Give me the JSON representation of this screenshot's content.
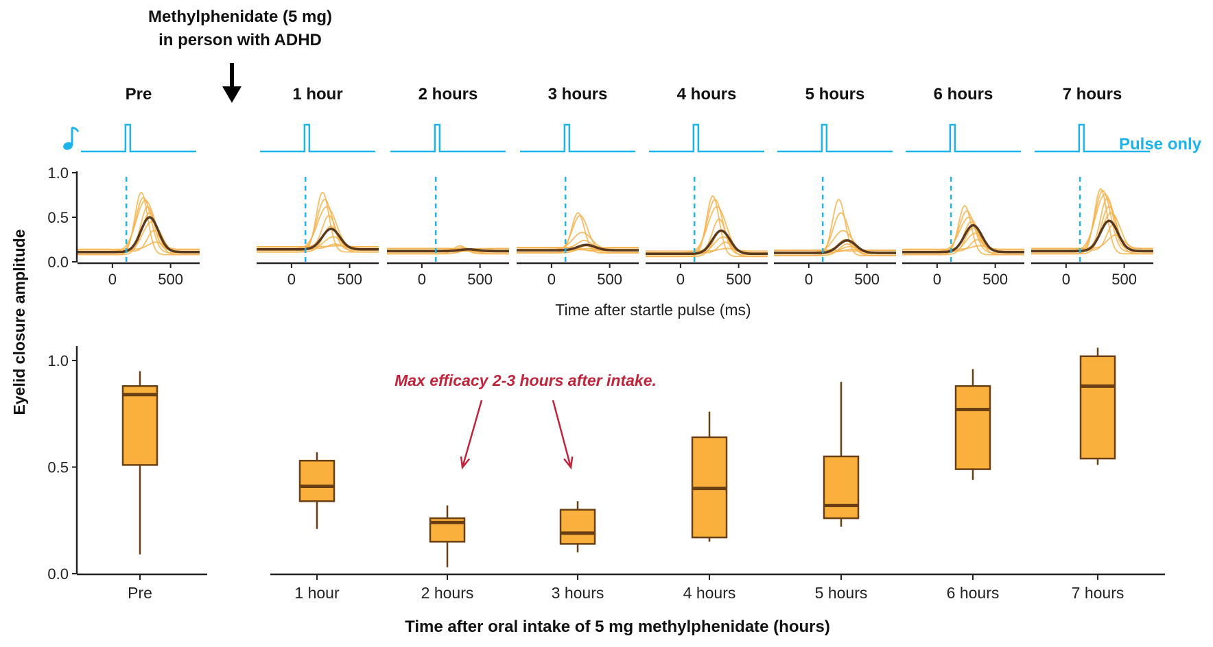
{
  "header": {
    "drug_line1": "Methylphenidate (5 mg)",
    "drug_line2": "in person with ADHD"
  },
  "stimulus_label": "Pulse only",
  "colors": {
    "stimulus": "#1cb4ea",
    "trace_light": "#f7b24a",
    "trace_mean": "#5a3a1e",
    "box_fill": "#f9b03d",
    "box_edge": "#6b3f14",
    "annotation": "#c0233a",
    "axis": "#222222"
  },
  "chart_data": [
    {
      "type": "line",
      "description_role": "trace-panels",
      "panels": [
        "Pre",
        "1 hour",
        "2 hours",
        "3 hours",
        "4 hours",
        "5 hours",
        "6 hours",
        "7 hours"
      ],
      "xlabel": "Time after startle pulse (ms)",
      "ylabel": "Eyelid closure amplitude",
      "xlim": [
        -300,
        750
      ],
      "ylim": [
        0,
        1
      ],
      "xticks": [
        0,
        500
      ],
      "yticks": [
        "0.0",
        "0.5",
        "1.0"
      ],
      "pulse_onset_ms": 120,
      "mean_traces": [
        {
          "name": "Pre",
          "peak_ms": 320,
          "peak": 0.5,
          "baseline": 0.11
        },
        {
          "name": "1 hour",
          "peak_ms": 340,
          "peak": 0.37,
          "baseline": 0.14
        },
        {
          "name": "2 hours",
          "peak_ms": 400,
          "peak": 0.14,
          "baseline": 0.12
        },
        {
          "name": "3 hours",
          "peak_ms": 300,
          "peak": 0.19,
          "baseline": 0.13
        },
        {
          "name": "4 hours",
          "peak_ms": 350,
          "peak": 0.35,
          "baseline": 0.09
        },
        {
          "name": "5 hours",
          "peak_ms": 330,
          "peak": 0.24,
          "baseline": 0.1
        },
        {
          "name": "6 hours",
          "peak_ms": 310,
          "peak": 0.41,
          "baseline": 0.11
        },
        {
          "name": "7 hours",
          "peak_ms": 370,
          "peak": 0.46,
          "baseline": 0.12
        }
      ],
      "individual_peaks": [
        [
          0.78,
          0.72,
          0.69,
          0.62,
          0.55,
          0.45,
          0.35,
          0.22
        ],
        [
          0.78,
          0.7,
          0.62,
          0.52,
          0.4,
          0.28,
          0.2,
          0.18
        ],
        [
          0.18,
          0.16,
          0.15,
          0.14,
          0.13,
          0.12,
          0.12,
          0.11
        ],
        [
          0.55,
          0.52,
          0.33,
          0.24,
          0.18,
          0.15,
          0.13,
          0.12
        ],
        [
          0.74,
          0.7,
          0.62,
          0.48,
          0.35,
          0.28,
          0.22,
          0.15
        ],
        [
          0.7,
          0.55,
          0.35,
          0.25,
          0.2,
          0.17,
          0.14,
          0.12
        ],
        [
          0.63,
          0.57,
          0.5,
          0.45,
          0.38,
          0.32,
          0.25,
          0.18
        ],
        [
          0.82,
          0.8,
          0.76,
          0.71,
          0.62,
          0.55,
          0.42,
          0.3
        ]
      ]
    },
    {
      "type": "box",
      "categories": [
        "Pre",
        "1 hour",
        "2 hours",
        "3 hours",
        "4 hours",
        "5 hours",
        "6 hours",
        "7 hours"
      ],
      "xlabel": "Time after oral intake of 5 mg methylphenidate (hours)",
      "ylabel": "Eyelid closure amplitude",
      "ylim": [
        0,
        1.05
      ],
      "yticks": [
        "0.0",
        "0.5",
        "1.0"
      ],
      "boxes": [
        {
          "category": "Pre",
          "whisker_low": 0.09,
          "q1": 0.51,
          "median": 0.84,
          "q3": 0.88,
          "whisker_high": 0.95
        },
        {
          "category": "1 hour",
          "whisker_low": 0.21,
          "q1": 0.34,
          "median": 0.41,
          "q3": 0.53,
          "whisker_high": 0.57
        },
        {
          "category": "2 hours",
          "whisker_low": 0.03,
          "q1": 0.15,
          "median": 0.24,
          "q3": 0.26,
          "whisker_high": 0.32
        },
        {
          "category": "3 hours",
          "whisker_low": 0.1,
          "q1": 0.14,
          "median": 0.19,
          "q3": 0.3,
          "whisker_high": 0.34
        },
        {
          "category": "4 hours",
          "whisker_low": 0.15,
          "q1": 0.17,
          "median": 0.4,
          "q3": 0.64,
          "whisker_high": 0.76
        },
        {
          "category": "5 hours",
          "whisker_low": 0.22,
          "q1": 0.26,
          "median": 0.32,
          "q3": 0.55,
          "whisker_high": 0.9
        },
        {
          "category": "6 hours",
          "whisker_low": 0.44,
          "q1": 0.49,
          "median": 0.77,
          "q3": 0.88,
          "whisker_high": 0.96
        },
        {
          "category": "7 hours",
          "whisker_low": 0.51,
          "q1": 0.54,
          "median": 0.88,
          "q3": 1.02,
          "whisker_high": 1.06
        }
      ],
      "annotations": [
        {
          "text": "Max efficacy 2-3 hours after intake.",
          "points_to": [
            "2 hours",
            "3 hours"
          ]
        }
      ]
    }
  ]
}
